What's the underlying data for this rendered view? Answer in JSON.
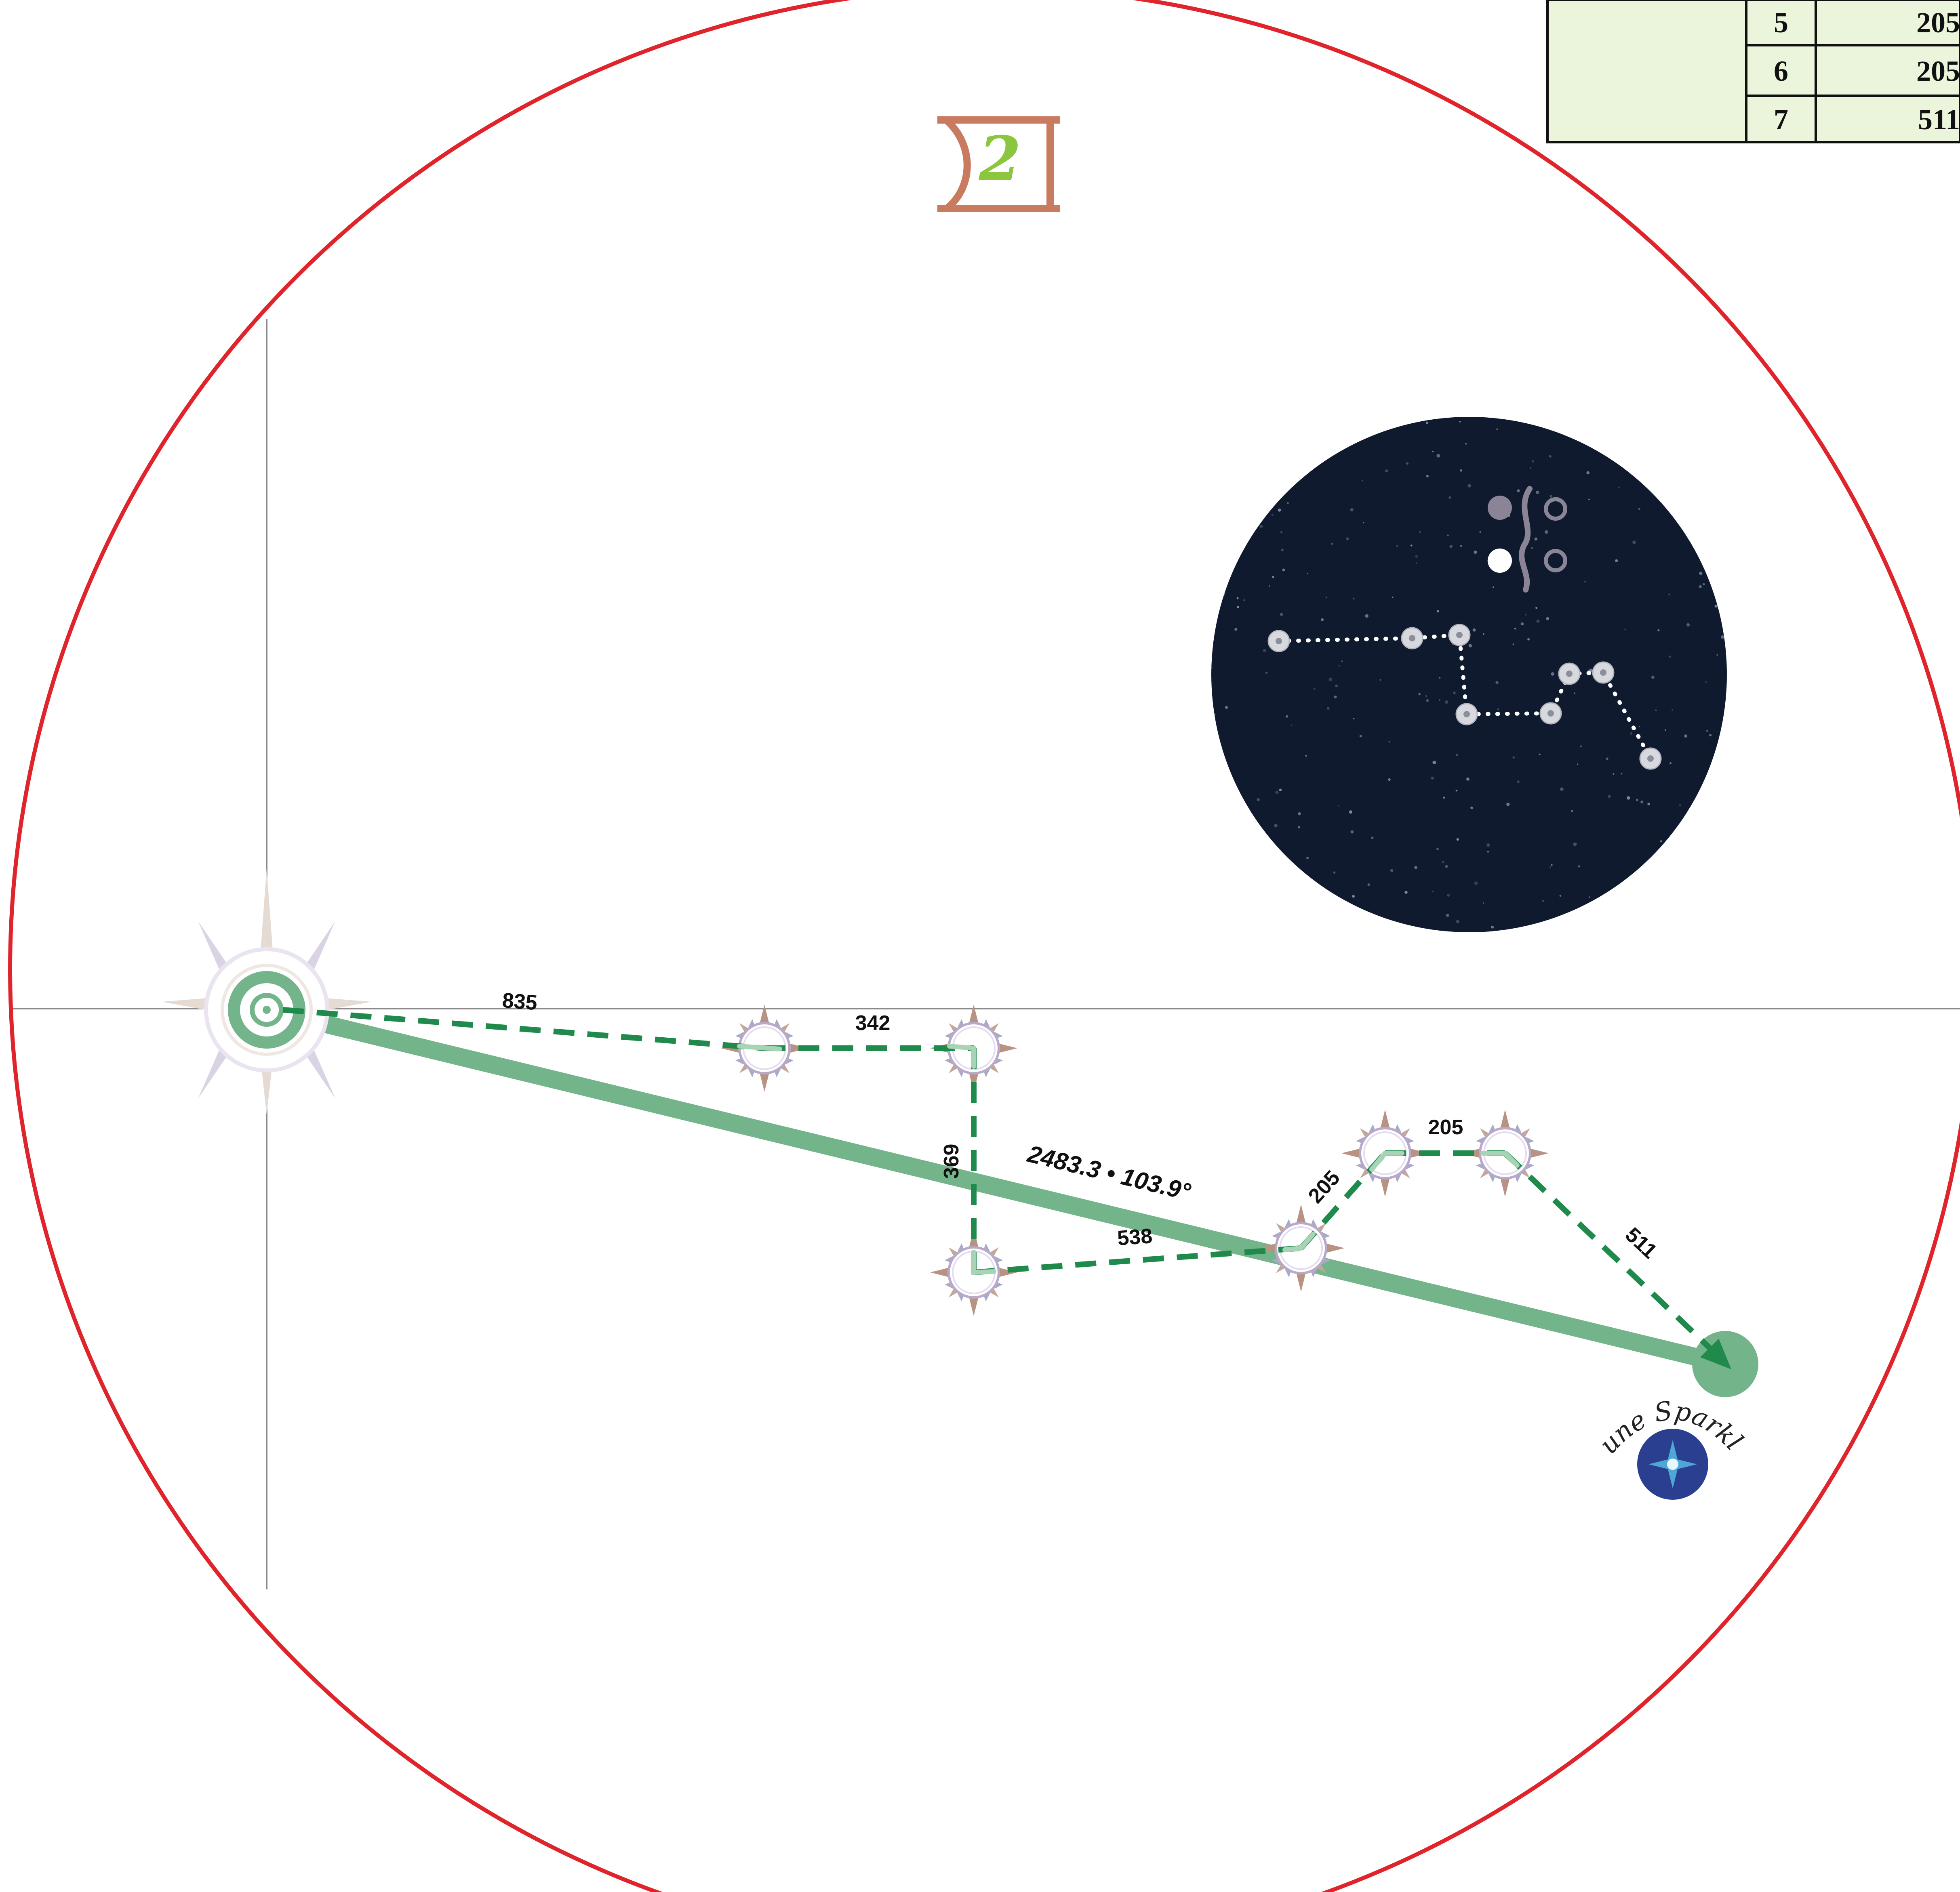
{
  "colors": {
    "boundary": "#e0242b",
    "route": "#1f8a4c",
    "total_path": "#74b48a",
    "axis": "#8a8a8a",
    "night_sky": "#0f1a2e",
    "star": "#d7d9de",
    "emblem": "#c97b60",
    "emblem_digit": "#8cc63f",
    "table_fill": "#eaf5dc",
    "signature_badge": "#2a3f8f"
  },
  "emblem": {
    "icon": "framed-two-emblem",
    "digit": "2"
  },
  "constellation": {
    "icon": "star-constellation",
    "glyph": "moon-phase-glyph"
  },
  "legs": [
    "835",
    "342",
    "369",
    "538",
    "205",
    "205",
    "511"
  ],
  "total": {
    "label": "2483.3 • 103.9°"
  },
  "signature": {
    "text": "June Sparkle",
    "icon": "sparkle-star-icon"
  },
  "table": {
    "rows": [
      {
        "leg": "5",
        "distance": "205"
      },
      {
        "leg": "6",
        "distance": "205"
      },
      {
        "leg": "7",
        "distance": "511"
      }
    ]
  }
}
